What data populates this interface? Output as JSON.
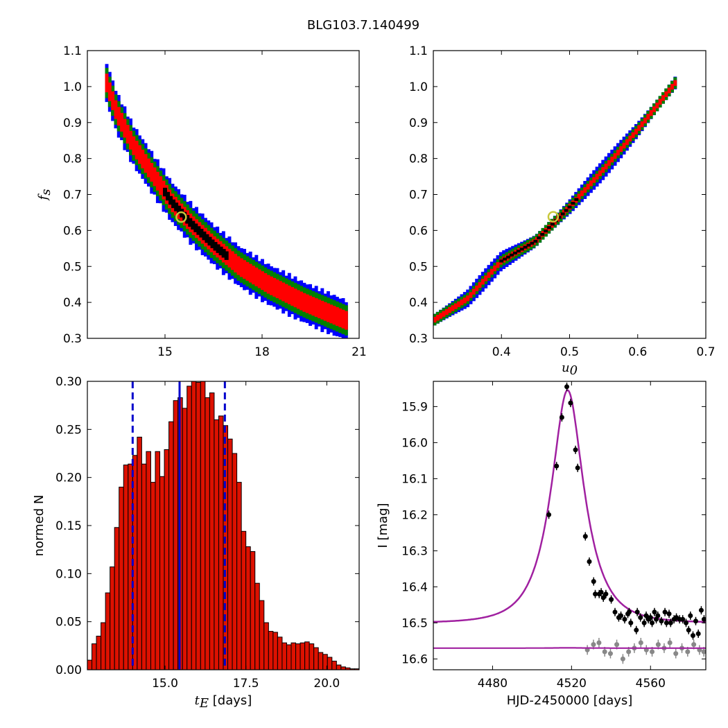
{
  "figure_title": "BLG103.7.140499",
  "colors": {
    "sigma3": "#0000ff",
    "sigma2": "#008000",
    "sigma1": "#ff0000",
    "best_region": "#000000",
    "best_marker": "#c8c83c",
    "hist_bar": "#dd1100",
    "vline": "#0000cc",
    "model": "#a020a0",
    "data_main": "#000000",
    "data_second": "#888888"
  },
  "chart_data": [
    {
      "id": "panel-fs-vs-tE",
      "type": "heatmap",
      "title": "",
      "xlabel": "",
      "ylabel": "f_s",
      "xlim": [
        12.6,
        21
      ],
      "ylim": [
        0.3,
        1.1
      ],
      "xticks": [
        "15",
        "18",
        "21"
      ],
      "yticks": [
        "0.3",
        "0.4",
        "0.5",
        "0.6",
        "0.7",
        "0.8",
        "0.9",
        "1.0",
        "1.1"
      ],
      "band": {
        "centerline": [
          [
            13.2,
            1.01
          ],
          [
            13.5,
            0.93
          ],
          [
            14.0,
            0.84
          ],
          [
            14.6,
            0.76
          ],
          [
            15.2,
            0.68
          ],
          [
            15.8,
            0.62
          ],
          [
            16.5,
            0.56
          ],
          [
            17.3,
            0.5
          ],
          [
            18.2,
            0.45
          ],
          [
            19.3,
            0.4
          ],
          [
            20.6,
            0.35
          ]
        ],
        "halfwidth_sigma3": 0.055,
        "halfwidth_sigma2": 0.042,
        "halfwidth_sigma1": 0.026,
        "halfwidth_best": 0.012,
        "best_range_x": [
          15.0,
          16.9
        ]
      },
      "best_fit": {
        "x": 15.5,
        "y": 0.637
      }
    },
    {
      "id": "panel-fs-vs-u0",
      "type": "heatmap",
      "title": "",
      "xlabel": "u_0",
      "ylabel": "",
      "xlim": [
        0.3,
        0.7
      ],
      "ylim": [
        0.3,
        1.1
      ],
      "xticks": [
        "0.4",
        "0.5",
        "0.6",
        "0.7"
      ],
      "yticks": [
        "0.3",
        "0.4",
        "0.5",
        "0.6",
        "0.7",
        "0.8",
        "0.9",
        "1.0",
        "1.1"
      ],
      "band": {
        "centerline": [
          [
            0.302,
            0.352
          ],
          [
            0.35,
            0.41
          ],
          [
            0.4,
            0.515
          ],
          [
            0.45,
            0.57
          ],
          [
            0.5,
            0.665
          ],
          [
            0.55,
            0.77
          ],
          [
            0.6,
            0.88
          ],
          [
            0.655,
            1.01
          ]
        ],
        "halfwidth_sigma3": 0.022,
        "halfwidth_sigma2": 0.016,
        "halfwidth_sigma1": 0.008,
        "halfwidth_best": 0.004,
        "best_range_x": [
          0.4,
          0.51
        ]
      },
      "best_fit": {
        "x": 0.476,
        "y": 0.638
      }
    },
    {
      "id": "panel-tE-histogram",
      "type": "bar",
      "title": "",
      "xlabel": "t_E [days]",
      "ylabel": "normed N",
      "xlim": [
        12.6,
        21.0
      ],
      "ylim": [
        0.0,
        0.3
      ],
      "xticks": [
        "15.0",
        "17.5",
        "20.0"
      ],
      "yticks": [
        "0.00",
        "0.05",
        "0.10",
        "0.15",
        "0.20",
        "0.25",
        "0.30"
      ],
      "bin_start": 12.6,
      "bin_width": 0.14,
      "values": [
        0.01,
        0.027,
        0.035,
        0.049,
        0.08,
        0.107,
        0.148,
        0.19,
        0.213,
        0.214,
        0.223,
        0.242,
        0.214,
        0.227,
        0.195,
        0.227,
        0.201,
        0.229,
        0.258,
        0.28,
        0.283,
        0.272,
        0.295,
        0.3,
        0.299,
        0.301,
        0.283,
        0.288,
        0.26,
        0.264,
        0.254,
        0.24,
        0.225,
        0.195,
        0.144,
        0.128,
        0.123,
        0.09,
        0.072,
        0.049,
        0.04,
        0.039,
        0.034,
        0.028,
        0.026,
        0.028,
        0.027,
        0.028,
        0.029,
        0.027,
        0.023,
        0.018,
        0.016,
        0.013,
        0.009,
        0.005,
        0.003,
        0.002,
        0.001,
        0.001
      ],
      "median": 15.45,
      "lower": 14.0,
      "upper": 16.85
    },
    {
      "id": "panel-lightcurve",
      "type": "scatter",
      "title": "",
      "xlabel": "HJD-2450000 [days]",
      "ylabel": "I [mag]",
      "xlim": [
        4450,
        4588
      ],
      "ylim": [
        16.63,
        15.83
      ],
      "xticks": [
        "4480",
        "4520",
        "4560"
      ],
      "yticks": [
        "15.9",
        "16.0",
        "16.1",
        "16.2",
        "16.3",
        "16.4",
        "16.5",
        "16.6"
      ],
      "model": {
        "t0": 4518.0,
        "u0": 0.476,
        "tE": 15.5,
        "I_base": 16.5,
        "fs": 0.637
      },
      "series": [
        {
          "x": [
            4508.5,
            4512.4,
            4515.1,
            4517.6,
            4519.5,
            4522.0,
            4523.1,
            4527.0,
            4529.0,
            4531.2,
            4532.0,
            4534.0,
            4535.0,
            4536.1,
            4537.4,
            4540.1,
            4542.0,
            4543.9,
            4545.0,
            4546.9,
            4548.5,
            4549.2,
            4550.0,
            4552.8,
            4553.3,
            4554.9,
            4556.8,
            4557.8,
            4558.9,
            4560.0,
            4560.8,
            4562.0,
            4562.9,
            4563.7,
            4565.5,
            4567.3,
            4568.1,
            4569.4,
            4570.2,
            4571.9,
            4573.1,
            4574.7,
            4576.3,
            4578.0,
            4579.3,
            4580.2,
            4581.5,
            4582.9,
            4584.2,
            4585.7,
            4587.1
          ],
          "y": [
            16.2,
            16.065,
            15.93,
            15.845,
            15.89,
            16.02,
            16.07,
            16.26,
            16.33,
            16.385,
            16.42,
            16.42,
            16.415,
            16.43,
            16.42,
            16.435,
            16.47,
            16.485,
            16.48,
            16.49,
            16.475,
            16.47,
            16.5,
            16.52,
            16.47,
            16.485,
            16.5,
            16.48,
            16.49,
            16.485,
            16.5,
            16.47,
            16.49,
            16.48,
            16.495,
            16.47,
            16.5,
            16.475,
            16.5,
            16.49,
            16.485,
            16.49,
            16.49,
            16.5,
            16.52,
            16.48,
            16.535,
            16.495,
            16.53,
            16.465,
            16.49
          ]
        },
        {
          "x": [
            4528.0,
            4531.1,
            4533.9,
            4536.8,
            4539.7,
            4542.9,
            4546.0,
            4548.9,
            4551.8,
            4555.1,
            4557.9,
            4560.8,
            4563.9,
            4566.9,
            4569.8,
            4572.8,
            4575.9,
            4578.8,
            4581.9,
            4584.8,
            4587.0
          ],
          "y": [
            16.575,
            16.56,
            16.555,
            16.58,
            16.585,
            16.56,
            16.6,
            16.58,
            16.57,
            16.555,
            16.575,
            16.58,
            16.56,
            16.57,
            16.555,
            16.585,
            16.57,
            16.58,
            16.56,
            16.575,
            16.58
          ]
        }
      ]
    }
  ]
}
